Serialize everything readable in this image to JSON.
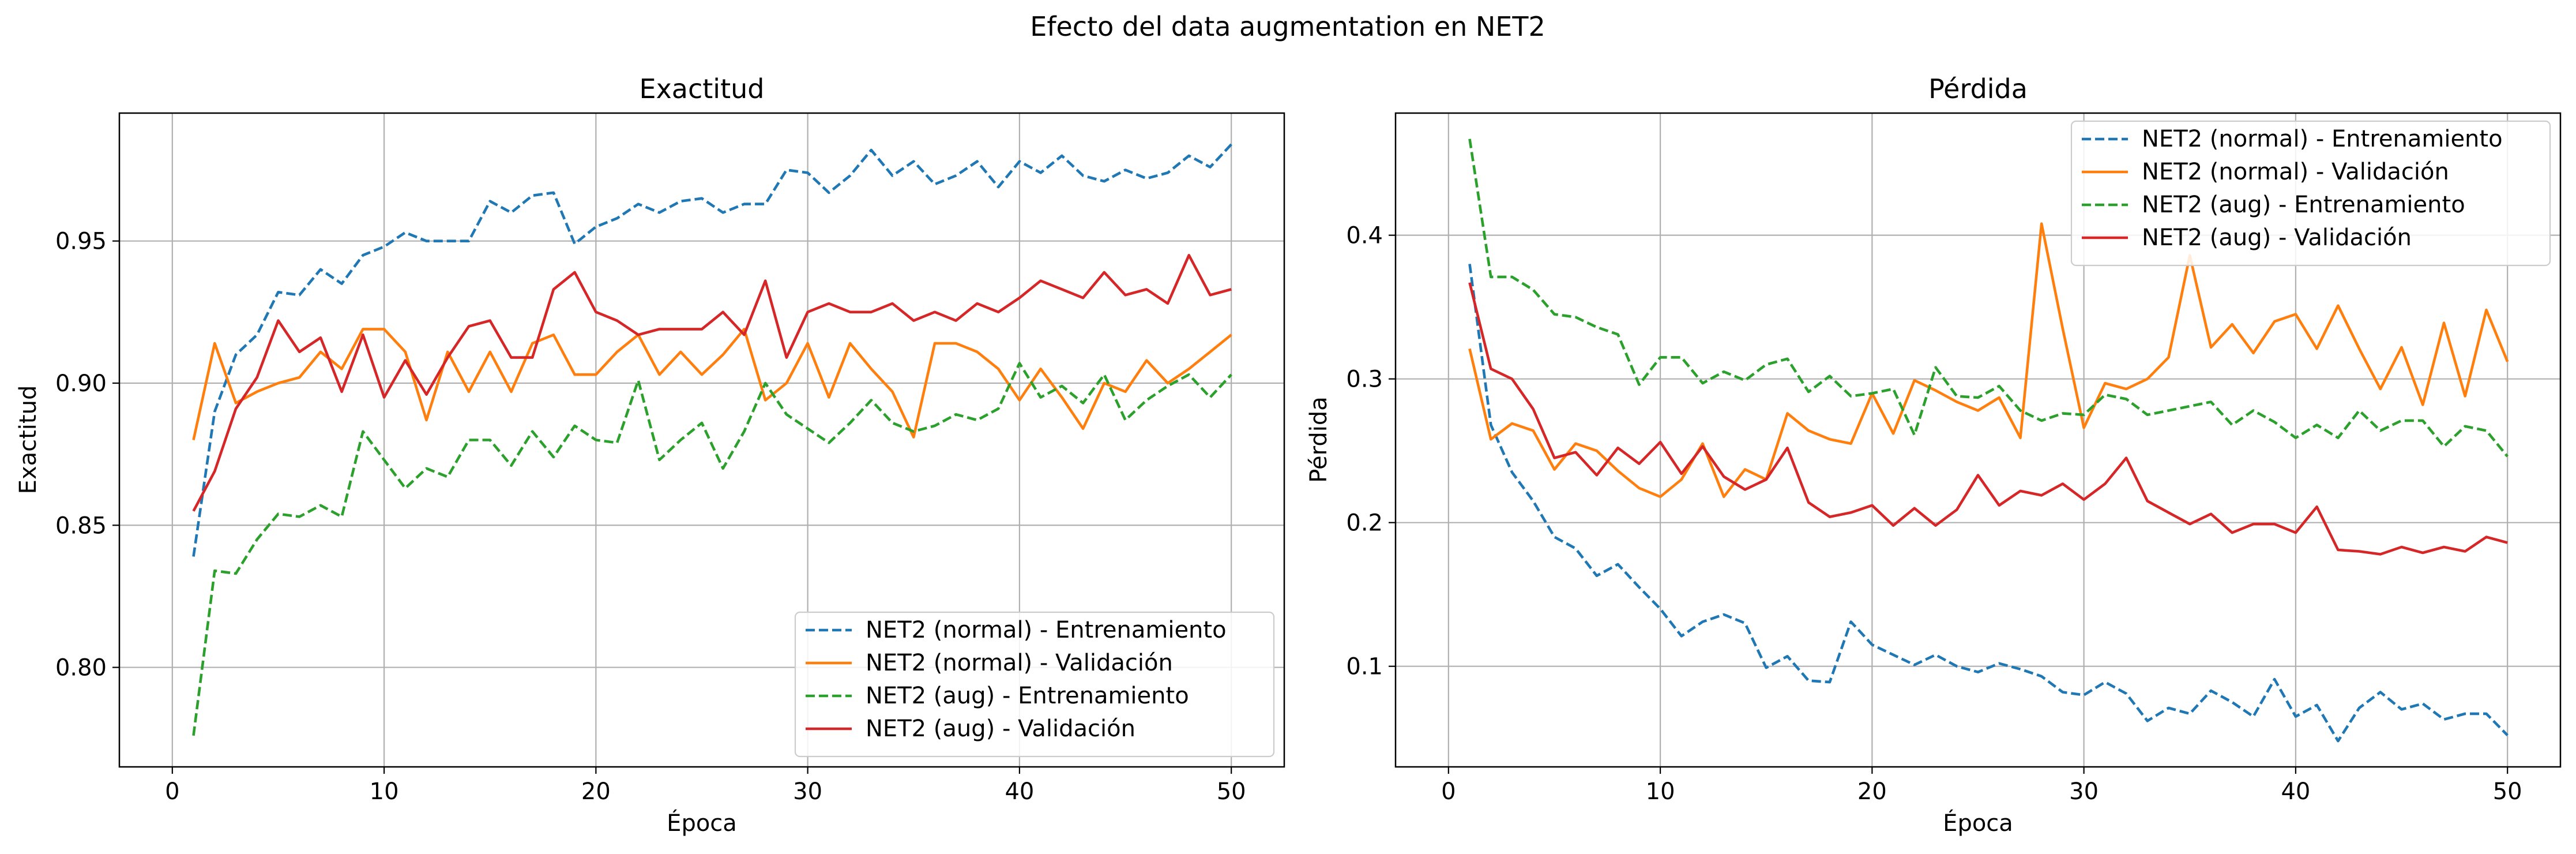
{
  "figure": {
    "suptitle": "Efecto del data augmentation en NET2"
  },
  "styles": {
    "series_colors": [
      "#1f77b4",
      "#ff7f0e",
      "#2ca02c",
      "#d62728"
    ],
    "series_dash": [
      "dashed",
      "solid",
      "dashed",
      "solid"
    ],
    "grid_color": "#b0b0b0"
  },
  "chart_data": [
    {
      "type": "line",
      "title": "Exactitud",
      "xlabel": "Época",
      "ylabel": "Exactitud",
      "xlim": [
        -2.5,
        52.5
      ],
      "ylim": [
        0.765,
        0.995
      ],
      "xticks": [
        0,
        10,
        20,
        30,
        40,
        50
      ],
      "yticks": [
        0.8,
        0.85,
        0.9,
        0.95
      ],
      "ytick_labels": [
        "0.80",
        "0.85",
        "0.90",
        "0.95"
      ],
      "grid": true,
      "legend": "lower right",
      "x": [
        1,
        2,
        3,
        4,
        5,
        6,
        7,
        8,
        9,
        10,
        11,
        12,
        13,
        14,
        15,
        16,
        17,
        18,
        19,
        20,
        21,
        22,
        23,
        24,
        25,
        26,
        27,
        28,
        29,
        30,
        31,
        32,
        33,
        34,
        35,
        36,
        37,
        38,
        39,
        40,
        41,
        42,
        43,
        44,
        45,
        46,
        47,
        48,
        49,
        50
      ],
      "series": [
        {
          "name": "NET2 (normal) - Entrenamiento",
          "values": [
            0.839,
            0.89,
            0.91,
            0.917,
            0.932,
            0.931,
            0.94,
            0.935,
            0.945,
            0.948,
            0.953,
            0.95,
            0.95,
            0.95,
            0.964,
            0.96,
            0.966,
            0.967,
            0.949,
            0.955,
            0.958,
            0.963,
            0.96,
            0.964,
            0.965,
            0.96,
            0.963,
            0.963,
            0.975,
            0.974,
            0.967,
            0.973,
            0.982,
            0.973,
            0.978,
            0.97,
            0.973,
            0.978,
            0.969,
            0.978,
            0.974,
            0.98,
            0.973,
            0.971,
            0.975,
            0.972,
            0.974,
            0.98,
            0.976,
            0.984
          ]
        },
        {
          "name": "NET2 (normal) - Validación",
          "values": [
            0.88,
            0.914,
            0.893,
            0.897,
            0.9,
            0.902,
            0.911,
            0.905,
            0.919,
            0.919,
            0.911,
            0.887,
            0.911,
            0.897,
            0.911,
            0.897,
            0.914,
            0.917,
            0.903,
            0.903,
            0.911,
            0.917,
            0.903,
            0.911,
            0.903,
            0.91,
            0.919,
            0.894,
            0.9,
            0.914,
            0.895,
            0.914,
            0.905,
            0.897,
            0.881,
            0.914,
            0.914,
            0.911,
            0.905,
            0.894,
            0.905,
            0.895,
            0.884,
            0.9,
            0.897,
            0.908,
            0.9,
            0.905,
            0.911,
            0.917
          ]
        },
        {
          "name": "NET2 (aug) - Entrenamiento",
          "values": [
            0.776,
            0.834,
            0.833,
            0.845,
            0.854,
            0.853,
            0.857,
            0.853,
            0.883,
            0.873,
            0.863,
            0.87,
            0.867,
            0.88,
            0.88,
            0.871,
            0.883,
            0.874,
            0.885,
            0.88,
            0.879,
            0.901,
            0.873,
            0.88,
            0.886,
            0.87,
            0.883,
            0.9,
            0.889,
            0.884,
            0.879,
            0.886,
            0.894,
            0.886,
            0.883,
            0.885,
            0.889,
            0.887,
            0.891,
            0.907,
            0.895,
            0.899,
            0.893,
            0.903,
            0.887,
            0.894,
            0.899,
            0.903,
            0.895,
            0.903
          ]
        },
        {
          "name": "NET2 (aug) - Validación",
          "values": [
            0.855,
            0.869,
            0.891,
            0.902,
            0.922,
            0.911,
            0.916,
            0.897,
            0.917,
            0.895,
            0.908,
            0.896,
            0.909,
            0.92,
            0.922,
            0.909,
            0.909,
            0.933,
            0.939,
            0.925,
            0.922,
            0.917,
            0.919,
            0.919,
            0.919,
            0.925,
            0.917,
            0.936,
            0.909,
            0.925,
            0.928,
            0.925,
            0.925,
            0.928,
            0.922,
            0.925,
            0.922,
            0.928,
            0.925,
            0.93,
            0.936,
            0.933,
            0.93,
            0.939,
            0.931,
            0.933,
            0.928,
            0.945,
            0.931,
            0.933
          ]
        }
      ]
    },
    {
      "type": "line",
      "title": "Pérdida",
      "xlabel": "Época",
      "ylabel": "Pérdida",
      "xlim": [
        -2.5,
        52.5
      ],
      "ylim": [
        0.03,
        0.485
      ],
      "xticks": [
        0,
        10,
        20,
        30,
        40,
        50
      ],
      "yticks": [
        0.1,
        0.2,
        0.3,
        0.4
      ],
      "ytick_labels": [
        "0.1",
        "0.2",
        "0.3",
        "0.4"
      ],
      "grid": true,
      "legend": "upper right",
      "x": [
        1,
        2,
        3,
        4,
        5,
        6,
        7,
        8,
        9,
        10,
        11,
        12,
        13,
        14,
        15,
        16,
        17,
        18,
        19,
        20,
        21,
        22,
        23,
        24,
        25,
        26,
        27,
        28,
        29,
        30,
        31,
        32,
        33,
        34,
        35,
        36,
        37,
        38,
        39,
        40,
        41,
        42,
        43,
        44,
        45,
        46,
        47,
        48,
        49,
        50
      ],
      "series": [
        {
          "name": "NET2 (normal) - Entrenamiento",
          "values": [
            0.38,
            0.268,
            0.235,
            0.215,
            0.19,
            0.182,
            0.163,
            0.171,
            0.155,
            0.14,
            0.121,
            0.131,
            0.136,
            0.13,
            0.099,
            0.107,
            0.09,
            0.089,
            0.131,
            0.115,
            0.108,
            0.101,
            0.108,
            0.1,
            0.096,
            0.102,
            0.098,
            0.093,
            0.082,
            0.08,
            0.089,
            0.081,
            0.062,
            0.071,
            0.067,
            0.083,
            0.075,
            0.065,
            0.091,
            0.065,
            0.073,
            0.048,
            0.071,
            0.082,
            0.07,
            0.074,
            0.063,
            0.067,
            0.067,
            0.052
          ]
        },
        {
          "name": "NET2 (normal) - Validación",
          "values": [
            0.321,
            0.258,
            0.269,
            0.264,
            0.237,
            0.255,
            0.25,
            0.236,
            0.224,
            0.218,
            0.23,
            0.255,
            0.218,
            0.237,
            0.23,
            0.276,
            0.264,
            0.258,
            0.255,
            0.29,
            0.262,
            0.299,
            0.292,
            0.284,
            0.278,
            0.287,
            0.259,
            0.408,
            0.335,
            0.266,
            0.297,
            0.293,
            0.3,
            0.315,
            0.386,
            0.322,
            0.338,
            0.318,
            0.34,
            0.345,
            0.321,
            0.351,
            0.321,
            0.293,
            0.322,
            0.282,
            0.339,
            0.288,
            0.348,
            0.312
          ]
        },
        {
          "name": "NET2 (aug) - Entrenamiento",
          "values": [
            0.467,
            0.371,
            0.371,
            0.362,
            0.345,
            0.343,
            0.336,
            0.331,
            0.296,
            0.315,
            0.315,
            0.297,
            0.305,
            0.299,
            0.31,
            0.314,
            0.291,
            0.302,
            0.288,
            0.29,
            0.293,
            0.261,
            0.308,
            0.288,
            0.287,
            0.295,
            0.278,
            0.271,
            0.276,
            0.275,
            0.289,
            0.286,
            0.275,
            0.278,
            0.281,
            0.284,
            0.268,
            0.278,
            0.27,
            0.259,
            0.268,
            0.259,
            0.278,
            0.264,
            0.271,
            0.271,
            0.253,
            0.267,
            0.264,
            0.246
          ]
        },
        {
          "name": "NET2 (aug) - Validación",
          "values": [
            0.367,
            0.307,
            0.3,
            0.279,
            0.245,
            0.249,
            0.233,
            0.252,
            0.241,
            0.256,
            0.234,
            0.253,
            0.232,
            0.223,
            0.23,
            0.252,
            0.214,
            0.204,
            0.207,
            0.212,
            0.198,
            0.21,
            0.198,
            0.209,
            0.233,
            0.212,
            0.222,
            0.219,
            0.227,
            0.216,
            0.227,
            0.245,
            0.215,
            0.207,
            0.199,
            0.206,
            0.193,
            0.199,
            0.199,
            0.193,
            0.211,
            0.181,
            0.18,
            0.178,
            0.183,
            0.179,
            0.183,
            0.18,
            0.19,
            0.186
          ]
        }
      ]
    }
  ]
}
